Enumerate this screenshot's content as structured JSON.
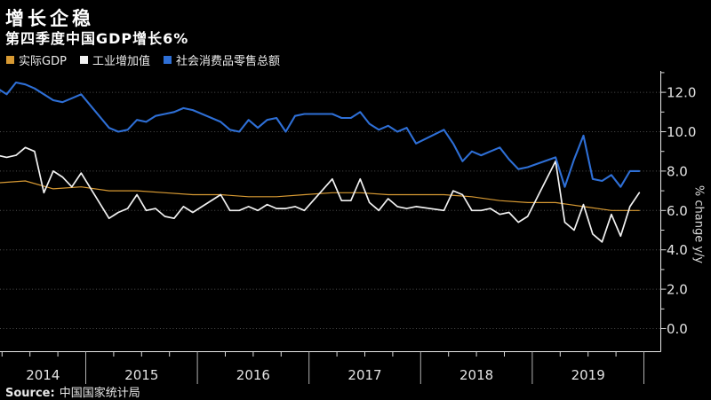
{
  "chart_data": {
    "type": "line",
    "title": "增长企稳",
    "subtitle": "第四季度中国GDP增长6%",
    "source_label": "Source:",
    "source_text": "中国国家统计局",
    "ylabel": "% change y/y",
    "ylim": [
      0,
      13.2
    ],
    "background_color": "#000000",
    "legend_position": "top-left",
    "grid": "horizontal-dotted",
    "y_ticks": {
      "values": [
        0,
        2,
        4,
        6,
        8,
        10,
        12
      ],
      "labels": [
        "0.0",
        "2.0",
        "4.0",
        "6.0",
        "8.0",
        "10.0",
        "12.0"
      ],
      "minor": [
        1,
        3,
        5,
        7,
        9,
        11,
        13
      ]
    },
    "x_years": {
      "labels": [
        "2014",
        "2015",
        "2016",
        "2017",
        "2018",
        "2019"
      ],
      "boundaries": [
        2015,
        2016,
        2017,
        2018,
        2019,
        2020
      ]
    },
    "series": [
      {
        "id": "real-gdp",
        "name": "实际GDP",
        "color": "#D89A33",
        "frequency": "quarterly",
        "points": [
          [
            "2014-03",
            7.4
          ],
          [
            "2014-06",
            7.5
          ],
          [
            "2014-09",
            7.1
          ],
          [
            "2014-12",
            7.2
          ],
          [
            "2015-03",
            7.0
          ],
          [
            "2015-06",
            7.0
          ],
          [
            "2015-09",
            6.9
          ],
          [
            "2015-12",
            6.8
          ],
          [
            "2016-03",
            6.8
          ],
          [
            "2016-06",
            6.7
          ],
          [
            "2016-09",
            6.7
          ],
          [
            "2016-12",
            6.8
          ],
          [
            "2017-03",
            6.9
          ],
          [
            "2017-06",
            6.9
          ],
          [
            "2017-09",
            6.8
          ],
          [
            "2017-12",
            6.8
          ],
          [
            "2018-03",
            6.8
          ],
          [
            "2018-06",
            6.7
          ],
          [
            "2018-09",
            6.5
          ],
          [
            "2018-12",
            6.4
          ],
          [
            "2019-03",
            6.4
          ],
          [
            "2019-06",
            6.2
          ],
          [
            "2019-09",
            6.0
          ],
          [
            "2019-12",
            6.0
          ]
        ]
      },
      {
        "id": "industrial-output",
        "name": "工业增加值",
        "color": "#F2F2F2",
        "frequency": "monthly",
        "points": [
          [
            "2014-03",
            8.8
          ],
          [
            "2014-04",
            8.7
          ],
          [
            "2014-05",
            8.8
          ],
          [
            "2014-06",
            9.2
          ],
          [
            "2014-07",
            9.0
          ],
          [
            "2014-08",
            6.9
          ],
          [
            "2014-09",
            8.0
          ],
          [
            "2014-10",
            7.7
          ],
          [
            "2014-11",
            7.2
          ],
          [
            "2014-12",
            7.9
          ],
          [
            "2015-03",
            5.6
          ],
          [
            "2015-04",
            5.9
          ],
          [
            "2015-05",
            6.1
          ],
          [
            "2015-06",
            6.8
          ],
          [
            "2015-07",
            6.0
          ],
          [
            "2015-08",
            6.1
          ],
          [
            "2015-09",
            5.7
          ],
          [
            "2015-10",
            5.6
          ],
          [
            "2015-11",
            6.2
          ],
          [
            "2015-12",
            5.9
          ],
          [
            "2016-03",
            6.8
          ],
          [
            "2016-04",
            6.0
          ],
          [
            "2016-05",
            6.0
          ],
          [
            "2016-06",
            6.2
          ],
          [
            "2016-07",
            6.0
          ],
          [
            "2016-08",
            6.3
          ],
          [
            "2016-09",
            6.1
          ],
          [
            "2016-10",
            6.1
          ],
          [
            "2016-11",
            6.2
          ],
          [
            "2016-12",
            6.0
          ],
          [
            "2017-03",
            7.6
          ],
          [
            "2017-04",
            6.5
          ],
          [
            "2017-05",
            6.5
          ],
          [
            "2017-06",
            7.6
          ],
          [
            "2017-07",
            6.4
          ],
          [
            "2017-08",
            6.0
          ],
          [
            "2017-09",
            6.6
          ],
          [
            "2017-10",
            6.2
          ],
          [
            "2017-11",
            6.1
          ],
          [
            "2017-12",
            6.2
          ],
          [
            "2018-03",
            6.0
          ],
          [
            "2018-04",
            7.0
          ],
          [
            "2018-05",
            6.8
          ],
          [
            "2018-06",
            6.0
          ],
          [
            "2018-07",
            6.0
          ],
          [
            "2018-08",
            6.1
          ],
          [
            "2018-09",
            5.8
          ],
          [
            "2018-10",
            5.9
          ],
          [
            "2018-11",
            5.4
          ],
          [
            "2018-12",
            5.7
          ],
          [
            "2019-03",
            8.5
          ],
          [
            "2019-04",
            5.4
          ],
          [
            "2019-05",
            5.0
          ],
          [
            "2019-06",
            6.3
          ],
          [
            "2019-07",
            4.8
          ],
          [
            "2019-08",
            4.4
          ],
          [
            "2019-09",
            5.8
          ],
          [
            "2019-10",
            4.7
          ],
          [
            "2019-11",
            6.2
          ],
          [
            "2019-12",
            6.9
          ]
        ]
      },
      {
        "id": "retail-sales",
        "name": "社会消费品零售总额",
        "color": "#2E6FD6",
        "frequency": "monthly",
        "points": [
          [
            "2014-03",
            12.2
          ],
          [
            "2014-04",
            11.9
          ],
          [
            "2014-05",
            12.5
          ],
          [
            "2014-06",
            12.4
          ],
          [
            "2014-07",
            12.2
          ],
          [
            "2014-08",
            11.9
          ],
          [
            "2014-09",
            11.6
          ],
          [
            "2014-10",
            11.5
          ],
          [
            "2014-11",
            11.7
          ],
          [
            "2014-12",
            11.9
          ],
          [
            "2015-03",
            10.2
          ],
          [
            "2015-04",
            10.0
          ],
          [
            "2015-05",
            10.1
          ],
          [
            "2015-06",
            10.6
          ],
          [
            "2015-07",
            10.5
          ],
          [
            "2015-08",
            10.8
          ],
          [
            "2015-09",
            10.9
          ],
          [
            "2015-10",
            11.0
          ],
          [
            "2015-11",
            11.2
          ],
          [
            "2015-12",
            11.1
          ],
          [
            "2016-03",
            10.5
          ],
          [
            "2016-04",
            10.1
          ],
          [
            "2016-05",
            10.0
          ],
          [
            "2016-06",
            10.6
          ],
          [
            "2016-07",
            10.2
          ],
          [
            "2016-08",
            10.6
          ],
          [
            "2016-09",
            10.7
          ],
          [
            "2016-10",
            10.0
          ],
          [
            "2016-11",
            10.8
          ],
          [
            "2016-12",
            10.9
          ],
          [
            "2017-03",
            10.9
          ],
          [
            "2017-04",
            10.7
          ],
          [
            "2017-05",
            10.7
          ],
          [
            "2017-06",
            11.0
          ],
          [
            "2017-07",
            10.4
          ],
          [
            "2017-08",
            10.1
          ],
          [
            "2017-09",
            10.3
          ],
          [
            "2017-10",
            10.0
          ],
          [
            "2017-11",
            10.2
          ],
          [
            "2017-12",
            9.4
          ],
          [
            "2018-03",
            10.1
          ],
          [
            "2018-04",
            9.4
          ],
          [
            "2018-05",
            8.5
          ],
          [
            "2018-06",
            9.0
          ],
          [
            "2018-07",
            8.8
          ],
          [
            "2018-08",
            9.0
          ],
          [
            "2018-09",
            9.2
          ],
          [
            "2018-10",
            8.6
          ],
          [
            "2018-11",
            8.1
          ],
          [
            "2018-12",
            8.2
          ],
          [
            "2019-03",
            8.7
          ],
          [
            "2019-04",
            7.2
          ],
          [
            "2019-05",
            8.6
          ],
          [
            "2019-06",
            9.8
          ],
          [
            "2019-07",
            7.6
          ],
          [
            "2019-08",
            7.5
          ],
          [
            "2019-09",
            7.8
          ],
          [
            "2019-10",
            7.2
          ],
          [
            "2019-11",
            8.0
          ],
          [
            "2019-12",
            8.0
          ]
        ]
      }
    ]
  }
}
